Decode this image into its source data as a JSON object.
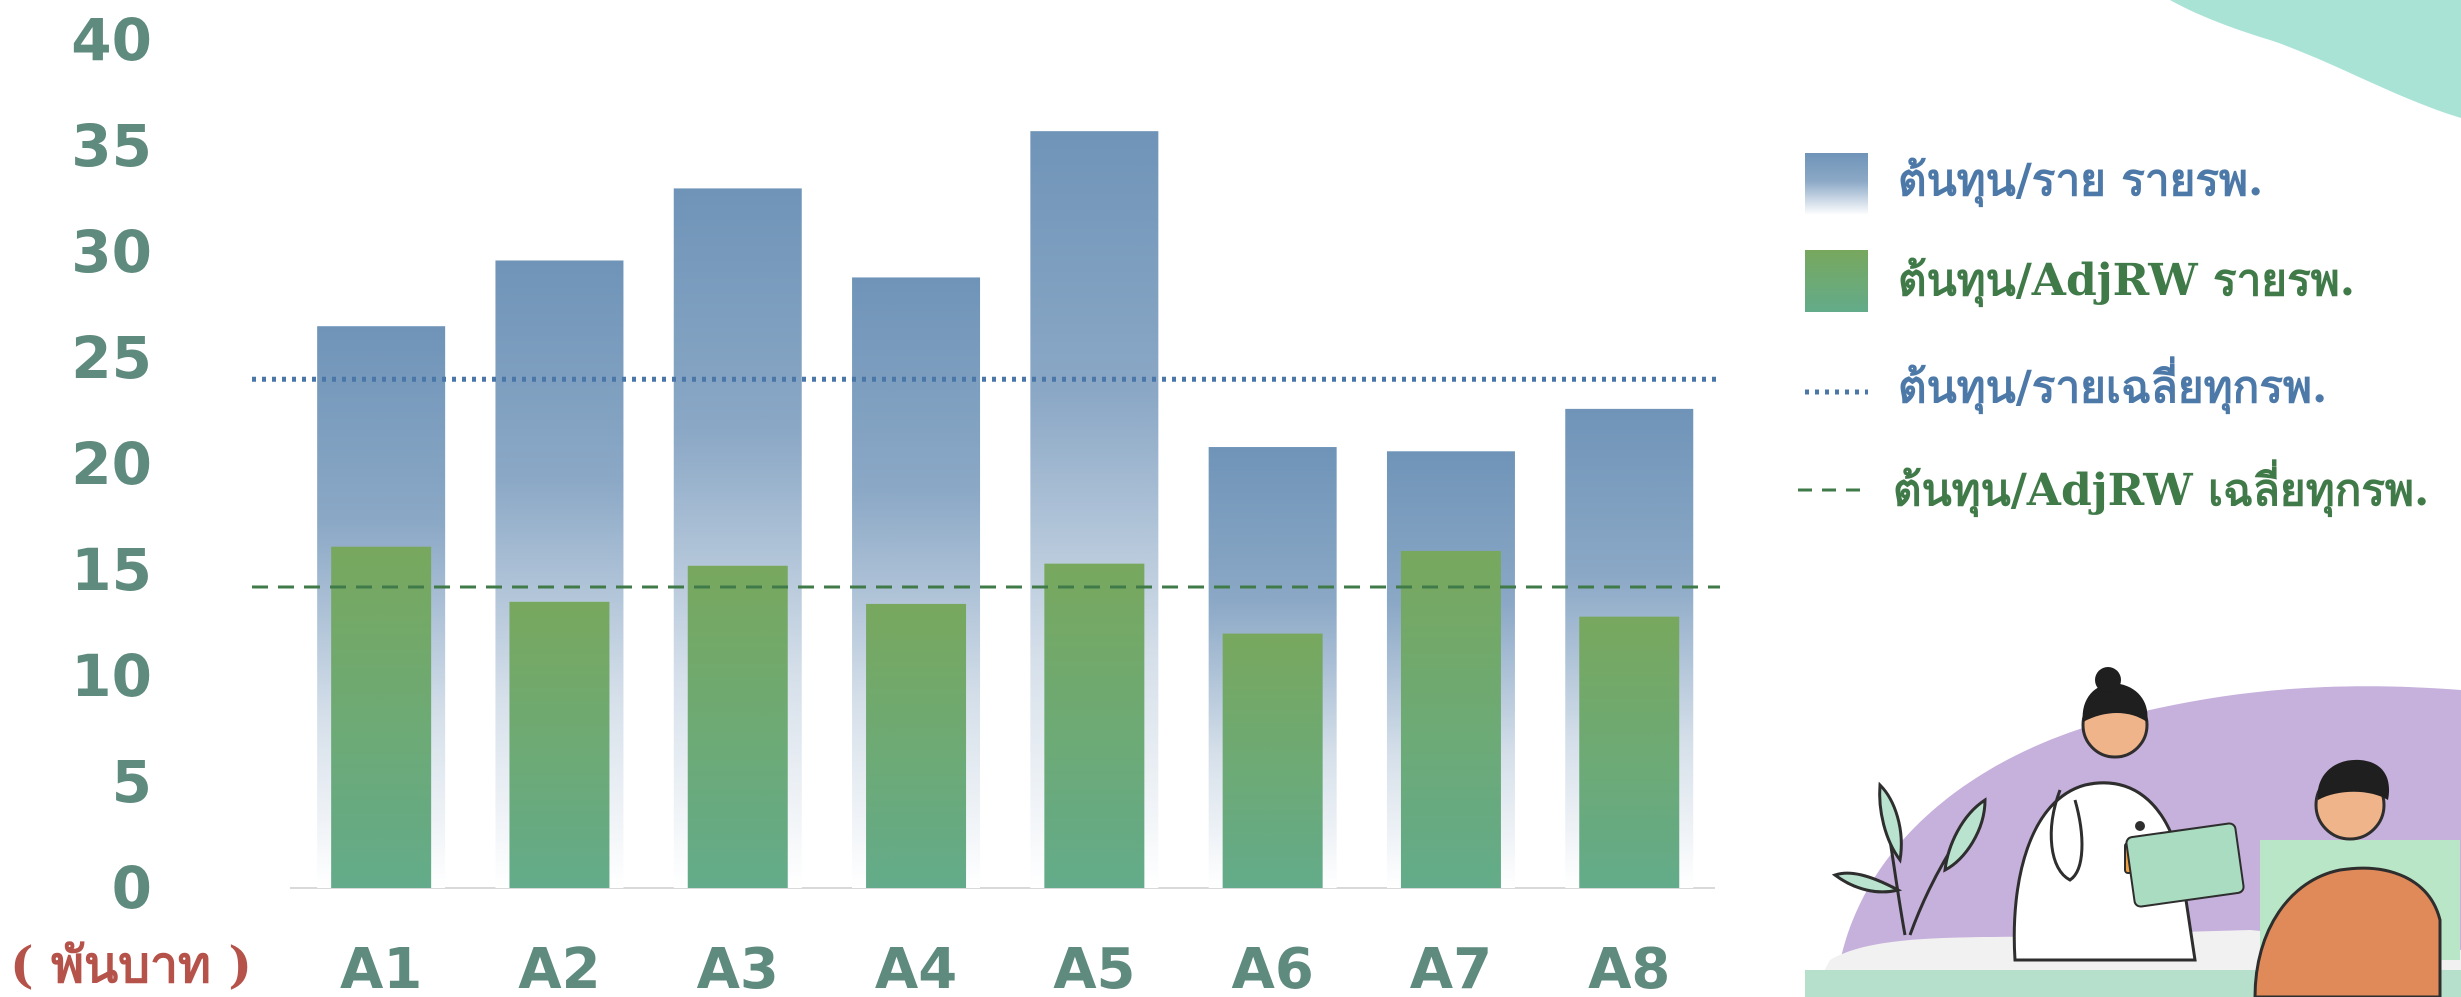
{
  "chart_data": {
    "type": "bar",
    "categories": [
      "A1",
      "A2",
      "A3",
      "A4",
      "A5",
      "A6",
      "A7",
      "A8"
    ],
    "series": [
      {
        "name": "ต้นทุน/ราย รายรพ.",
        "values": [
          26.5,
          29.6,
          33.0,
          28.8,
          35.7,
          20.8,
          20.6,
          22.6
        ]
      },
      {
        "name": "ต้นทุน/AdjRW รายรพ.",
        "values": [
          16.1,
          13.5,
          15.2,
          13.4,
          15.3,
          12.0,
          15.9,
          12.8
        ]
      }
    ],
    "reference_lines": [
      {
        "name": "ต้นทุน/รายเฉลี่ยทุกรพ.",
        "value": 24.0,
        "style": "dotted"
      },
      {
        "name": "ต้นทุน/AdjRW เฉลี่ยทุกรพ.",
        "value": 14.2,
        "style": "dashed"
      }
    ],
    "yticks": [
      "0",
      "5",
      "10",
      "15",
      "20",
      "25",
      "30",
      "35",
      "40"
    ],
    "ylim": [
      0,
      40
    ],
    "ylabel": "( พันบาท )",
    "xlabel": "",
    "title": "",
    "legend_position": "right",
    "grid": false
  },
  "colors": {
    "bar_blue": "#6f94b8",
    "bar_green_top": "#78a85e",
    "bar_green_bottom": "#63ab8a",
    "avg_blue_line": "#4a77a8",
    "avg_green_line": "#3f7a48",
    "tick_text": "#5f8a7e",
    "cat_text": "#5f8a7e",
    "unit_text": "#b5534a",
    "legend_blue_text": "#4d79a8",
    "legend_green_text": "#3f7a48",
    "axis_line": "#d9d9d9"
  },
  "decorations": {
    "illustration": "doctor-and-patient-illustration",
    "corner_blob": "corner-blob-decoration"
  }
}
